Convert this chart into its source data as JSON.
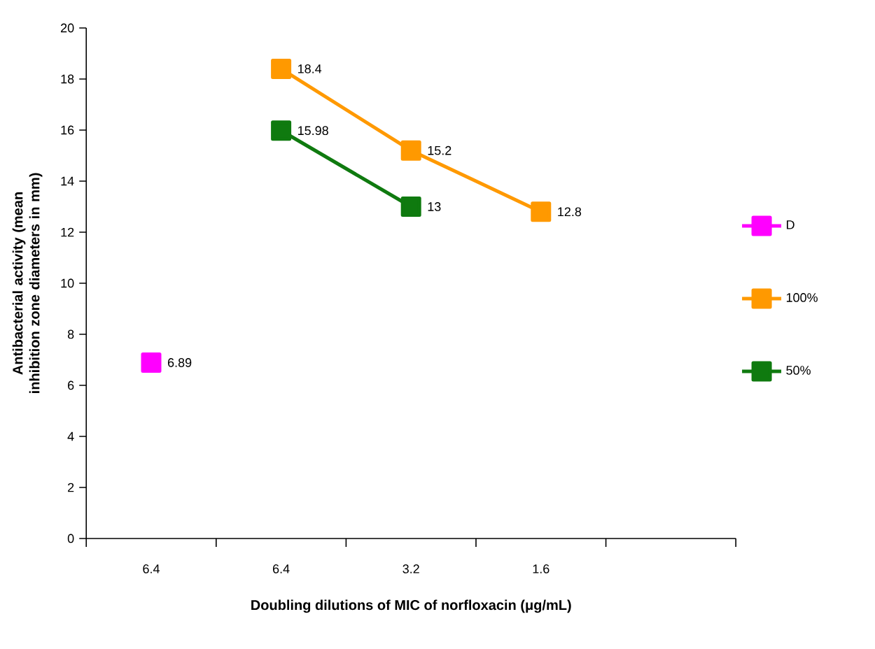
{
  "chart_data": {
    "type": "line",
    "xlabel": "Doubling dilutions of MIC of norfloxacin (μg/mL)",
    "ylabel": "Antibacterial activity (mean inhibition zone diameters in mm)",
    "categories": [
      "6.4",
      "6.4",
      "3.2",
      "1.6",
      null
    ],
    "series": [
      {
        "name": "D",
        "color": "#ff00ff",
        "values": [
          6.89,
          null,
          null,
          null,
          null
        ]
      },
      {
        "name": "100%",
        "color": "#ff9900",
        "values": [
          null,
          18.4,
          15.2,
          12.8,
          null
        ]
      },
      {
        "name": "50%",
        "color": "#0f7a0f",
        "values": [
          null,
          15.98,
          13,
          null,
          null
        ]
      }
    ],
    "ylim": [
      0,
      20
    ],
    "yticks": [
      0,
      2,
      4,
      6,
      8,
      10,
      12,
      14,
      16,
      18,
      20
    ],
    "marker": "square",
    "line_style": "solid",
    "legend": "right",
    "data_labels": true,
    "grid": false
  }
}
